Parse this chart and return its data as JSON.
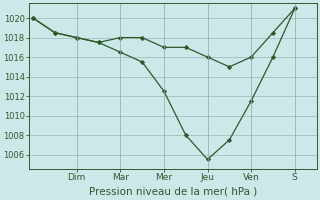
{
  "background_color": "#cce8e8",
  "line_color": "#2d5a2d",
  "marker_color": "#2d5a2d",
  "xlabel": "Pression niveau de la mer( hPa )",
  "ylim": [
    1004.5,
    1021.5
  ],
  "yticks": [
    1006,
    1008,
    1010,
    1012,
    1014,
    1016,
    1018,
    1020
  ],
  "day_labels": [
    "Dim",
    "Mar",
    "Mer",
    "Jeu",
    "Ven",
    "S"
  ],
  "day_positions": [
    2,
    4,
    6,
    8,
    10,
    12
  ],
  "series1_x": [
    0,
    1,
    2,
    3,
    4,
    5,
    6,
    7,
    8,
    9,
    10,
    11,
    12
  ],
  "series1_y": [
    1020,
    1018.5,
    1018,
    1017.5,
    1018,
    1018,
    1017,
    1017,
    1016,
    1015,
    1016,
    1018.5,
    1021
  ],
  "series2_x": [
    0,
    1,
    2,
    3,
    4,
    5,
    6,
    7,
    8,
    9,
    10,
    11,
    12
  ],
  "series2_y": [
    1020,
    1018.5,
    1018,
    1017.5,
    1016.5,
    1015.5,
    1012.5,
    1008,
    1005.5,
    1007.5,
    1011.5,
    1016,
    1021
  ],
  "xlim": [
    -0.2,
    13
  ],
  "figsize": [
    3.2,
    2.0
  ],
  "dpi": 100,
  "grid_color": "#9ab8b8",
  "xtick_fontsize": 6.5,
  "ytick_fontsize": 6,
  "xlabel_fontsize": 7.5
}
